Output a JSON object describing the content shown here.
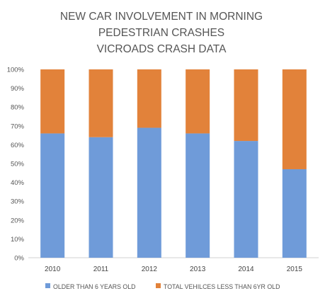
{
  "chart_data": {
    "type": "bar",
    "stacked": "percent",
    "title_lines": [
      "NEW CAR INVOLVEMENT IN MORNING",
      "PEDESTRIAN CRASHES",
      "VICROADS CRASH DATA"
    ],
    "categories": [
      "2010",
      "2011",
      "2012",
      "2013",
      "2014",
      "2015"
    ],
    "series": [
      {
        "name": "OLDER THAN 6 YEARS OLD",
        "color": "#6f9bd9",
        "values": [
          66,
          64,
          69,
          66,
          62,
          47
        ]
      },
      {
        "name": "TOTAL VEHILCES LESS THAN 6YR OLD",
        "color": "#e2823a",
        "values": [
          34,
          36,
          31,
          34,
          38,
          53
        ]
      }
    ],
    "ylim": [
      0,
      100
    ],
    "yticks": [
      "0%",
      "10%",
      "20%",
      "30%",
      "40%",
      "50%",
      "60%",
      "70%",
      "80%",
      "90%",
      "100%"
    ],
    "grid": false,
    "legend_position": "bottom"
  }
}
